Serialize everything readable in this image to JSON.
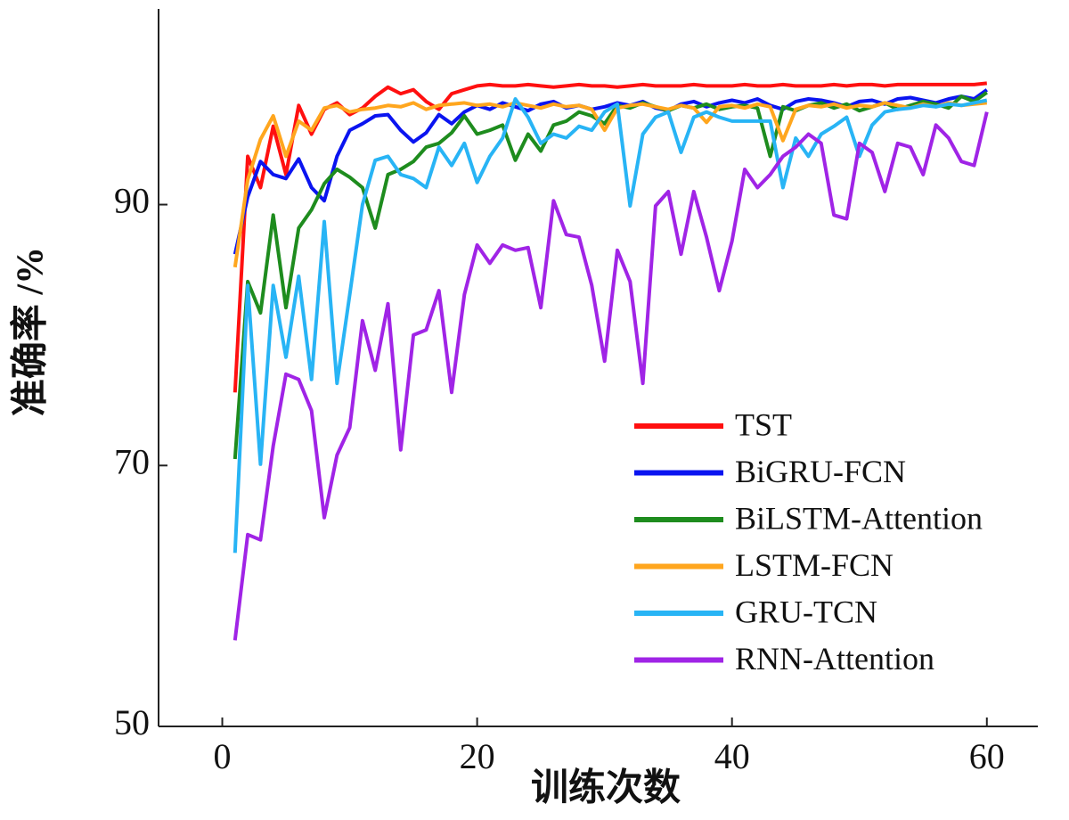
{
  "chart_data": {
    "type": "line",
    "xlabel": "训练次数",
    "ylabel": "准确率 /%",
    "x": [
      1,
      2,
      3,
      4,
      5,
      6,
      7,
      8,
      9,
      10,
      11,
      12,
      13,
      14,
      15,
      16,
      17,
      18,
      19,
      20,
      21,
      22,
      23,
      24,
      25,
      26,
      27,
      28,
      29,
      30,
      31,
      32,
      33,
      34,
      35,
      36,
      37,
      38,
      39,
      40,
      41,
      42,
      43,
      44,
      45,
      46,
      47,
      48,
      49,
      50,
      51,
      52,
      53,
      54,
      55,
      56,
      57,
      58,
      59,
      60
    ],
    "xlim": [
      -5,
      64
    ],
    "xticks": [
      0,
      20,
      40,
      60
    ],
    "ylim": [
      50,
      105
    ],
    "yticks": [
      50,
      70,
      90
    ],
    "legend": "lower right",
    "series": [
      {
        "name": "TST",
        "color": "#ff1010",
        "values": [
          75.6,
          93.7,
          91.3,
          96,
          92.3,
          97.6,
          95.4,
          97.3,
          97.8,
          96.9,
          97.4,
          98.3,
          99,
          98.5,
          98.8,
          97.9,
          97.3,
          98.5,
          98.8,
          99.1,
          99.2,
          99.1,
          99.1,
          99.2,
          99.1,
          99.0,
          99.1,
          99.2,
          99.1,
          99.1,
          99.0,
          99.1,
          99.2,
          99.1,
          99.1,
          99.1,
          99.2,
          99.1,
          99.1,
          99.1,
          99.2,
          99.1,
          99.1,
          99.2,
          99.1,
          99.1,
          99.1,
          99.2,
          99.1,
          99.2,
          99.2,
          99.1,
          99.2,
          99.2,
          99.2,
          99.2,
          99.2,
          99.2,
          99.2,
          99.3
        ]
      },
      {
        "name": "BiGRU-FCN",
        "color": "#0a14f0",
        "values": [
          86.2,
          90.6,
          93.3,
          92.3,
          92,
          93.5,
          91.3,
          90.3,
          93.7,
          95.7,
          96.2,
          96.8,
          96.9,
          95.7,
          94.8,
          95.5,
          96.9,
          96.2,
          97.1,
          97.6,
          97.3,
          97.8,
          97.5,
          97.2,
          97.7,
          97.9,
          97.4,
          97.6,
          97.3,
          97.5,
          97.8,
          97.6,
          97.9,
          97.4,
          97.2,
          97.7,
          97.9,
          97.5,
          97.8,
          98,
          97.8,
          98.1,
          97.6,
          97.3,
          97.9,
          98.1,
          98,
          97.8,
          97.5,
          97.9,
          98,
          97.7,
          98.1,
          98.2,
          98,
          97.8,
          98.1,
          98.3,
          98.1,
          98.8
        ]
      },
      {
        "name": "BiLSTM-Attention",
        "color": "#1e8c1e",
        "values": [
          70.5,
          84.1,
          81.7,
          89.2,
          82.1,
          88.2,
          89.6,
          91.6,
          92.7,
          92.1,
          91.3,
          88.2,
          92.3,
          92.7,
          93.3,
          94.4,
          94.7,
          95.5,
          96.8,
          95.4,
          95.7,
          96.1,
          93.4,
          95.4,
          94.1,
          96.1,
          96.4,
          97.1,
          96.8,
          96.2,
          97.6,
          97.4,
          97.8,
          97.5,
          97.2,
          97.6,
          97.4,
          97.7,
          97.3,
          97.5,
          97.6,
          97.4,
          93.7,
          97.5,
          97.2,
          97.6,
          97.8,
          97.4,
          97.7,
          97.2,
          97.5,
          97.8,
          97.3,
          97.6,
          97.9,
          97.7,
          97.4,
          98.3,
          97.9,
          98.6
        ]
      },
      {
        "name": "LSTM-FCN",
        "color": "#ffa61e",
        "values": [
          85.2,
          91.9,
          95,
          96.8,
          93.7,
          96.4,
          95.7,
          97.4,
          97.6,
          97.1,
          97.3,
          97.4,
          97.6,
          97.5,
          97.8,
          97.3,
          97.6,
          97.7,
          97.8,
          97.6,
          97.7,
          97.5,
          97.8,
          97.6,
          97.4,
          97.7,
          97.5,
          97.6,
          97.3,
          95.7,
          97.4,
          97.6,
          97.7,
          97.5,
          97.3,
          97.6,
          97.4,
          96.3,
          97.5,
          97.6,
          97.4,
          97.7,
          97.5,
          94.9,
          97.3,
          97.6,
          97.5,
          97.7,
          97.4,
          97.6,
          97.5,
          97.8,
          97.6,
          97.4,
          97.7,
          97.5,
          97.8,
          97.6,
          97.7,
          97.8
        ]
      },
      {
        "name": "GRU-TCN",
        "color": "#28b4f5",
        "values": [
          63.3,
          83.8,
          70.1,
          83.8,
          78.3,
          84.5,
          76.6,
          88.7,
          76.3,
          83.1,
          90,
          93.4,
          93.7,
          92.3,
          92,
          91.3,
          94.4,
          93,
          94.7,
          91.7,
          93.7,
          95.1,
          98.1,
          96.7,
          94.7,
          95.4,
          95.1,
          96,
          95.7,
          97.1,
          97.7,
          89.9,
          95.4,
          96.7,
          97.1,
          94,
          96.7,
          97.1,
          96.7,
          96.4,
          96.4,
          96.4,
          96.4,
          91.3,
          95.1,
          93.7,
          95.4,
          96,
          96.7,
          93.7,
          96.1,
          97.1,
          97.3,
          97.4,
          97.6,
          97.5,
          97.7,
          97.6,
          97.8,
          98
        ]
      },
      {
        "name": "RNN-Attention",
        "color": "#a024e6",
        "values": [
          56.6,
          64.7,
          64.3,
          71.5,
          77,
          76.6,
          74.2,
          66,
          70.8,
          72.9,
          81.1,
          77.3,
          82.4,
          71.2,
          80,
          80.4,
          83.4,
          75.6,
          83.1,
          86.9,
          85.5,
          86.9,
          86.5,
          86.7,
          82.1,
          90.3,
          87.7,
          87.5,
          83.8,
          78,
          86.5,
          84.1,
          76.3,
          89.9,
          91,
          86.2,
          91,
          87.5,
          83.4,
          87.2,
          92.7,
          91.3,
          92.3,
          93.7,
          94.4,
          95.4,
          94.7,
          89.2,
          88.9,
          94.7,
          94,
          91,
          94.7,
          94.4,
          92.3,
          96.1,
          95.1,
          93.3,
          93,
          97.1
        ]
      }
    ]
  }
}
